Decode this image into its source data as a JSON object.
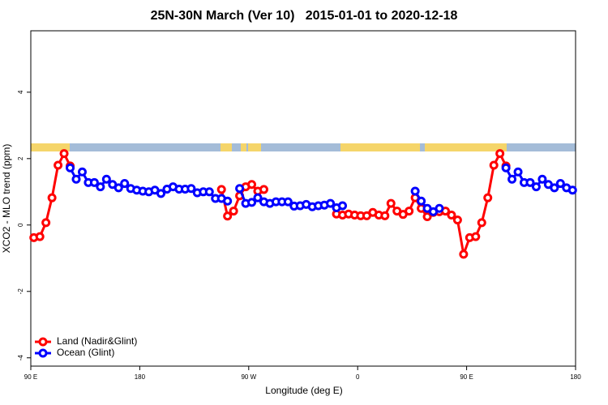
{
  "chart_data": {
    "type": "line",
    "title": "25N-30N March (Ver 10)   2015-01-01 to 2020-12-18",
    "x_label": "Longitude (deg E)",
    "y_label": "XCO2 - MLO trend (ppm)",
    "xlim": [
      90,
      540
    ],
    "ylim": [
      -4.25,
      5.85
    ],
    "xticks": [
      {
        "value": 90,
        "label": "90 E"
      },
      180,
      {
        "value": 270,
        "label": "90 W"
      },
      {
        "value": 360,
        "label": "0"
      },
      {
        "value": 450,
        "label": "90 E"
      },
      {
        "value": 540,
        "label": "180"
      }
    ],
    "yticks": [
      -4,
      -2,
      0,
      2,
      4
    ],
    "legend": "bottom-left",
    "x": [
      92.5,
      97.5,
      102.5,
      107.5,
      112.5,
      117.5,
      122.5,
      127.5,
      132.5,
      137.5,
      142.5,
      147.5,
      152.5,
      157.5,
      162.5,
      167.5,
      172.5,
      177.5,
      182.5,
      187.5,
      192.5,
      197.5,
      202.5,
      207.5,
      212.5,
      217.5,
      222.5,
      227.5,
      232.5,
      237.5,
      242.5,
      247.5,
      252.5,
      257.5,
      262.5,
      267.5,
      272.5,
      277.5,
      282.5,
      287.5,
      292.5,
      297.5,
      302.5,
      307.5,
      312.5,
      317.5,
      322.5,
      327.5,
      332.5,
      337.5,
      342.5,
      347.5,
      352.5,
      357.5,
      362.5,
      367.5,
      372.5,
      377.5,
      382.5,
      387.5,
      392.5,
      397.5,
      402.5,
      407.5,
      412.5,
      417.5,
      422.5,
      427.5,
      432.5,
      437.5,
      442.5,
      447.5,
      452.5,
      457.5,
      462.5,
      467.5,
      472.5,
      477.5,
      482.5,
      487.5,
      492.5,
      497.5,
      502.5,
      507.5,
      512.5,
      517.5,
      522.5,
      527.5,
      532.5,
      537.5
    ],
    "series": [
      {
        "name": "Land (Nadir&Glint)",
        "color": "#ff0000",
        "values": [
          -0.38,
          -0.35,
          0.07,
          0.82,
          1.8,
          2.15,
          1.78,
          null,
          null,
          null,
          null,
          null,
          null,
          null,
          null,
          null,
          null,
          null,
          null,
          null,
          null,
          null,
          null,
          null,
          null,
          null,
          null,
          null,
          null,
          null,
          null,
          1.07,
          0.27,
          0.42,
          0.88,
          1.15,
          1.22,
          1.02,
          1.07,
          null,
          null,
          null,
          null,
          null,
          null,
          null,
          null,
          null,
          null,
          null,
          0.33,
          0.3,
          0.33,
          0.3,
          0.28,
          0.28,
          0.38,
          0.3,
          0.28,
          0.65,
          0.42,
          0.32,
          0.42,
          0.82,
          0.5,
          0.25,
          0.38,
          0.4,
          0.42,
          0.3,
          0.15,
          -0.88,
          -0.38,
          -0.35,
          0.07,
          0.82,
          1.8,
          2.15,
          1.78,
          null,
          null,
          null,
          null,
          null,
          null,
          null,
          null,
          null,
          null,
          null
        ]
      },
      {
        "name": "Ocean (Glint)",
        "color": "#0000ff",
        "values": [
          null,
          null,
          null,
          null,
          null,
          null,
          1.72,
          1.38,
          1.6,
          1.28,
          1.28,
          1.15,
          1.38,
          1.22,
          1.12,
          1.25,
          1.1,
          1.05,
          1.02,
          1.0,
          1.05,
          0.95,
          1.08,
          1.15,
          1.08,
          1.08,
          1.1,
          0.97,
          1.0,
          1.0,
          0.8,
          0.8,
          0.72,
          null,
          1.1,
          0.65,
          0.68,
          0.82,
          0.7,
          0.65,
          0.7,
          0.7,
          0.7,
          0.57,
          0.58,
          0.62,
          0.55,
          0.58,
          0.6,
          0.65,
          0.52,
          0.58,
          null,
          null,
          null,
          null,
          null,
          null,
          null,
          null,
          null,
          null,
          null,
          1.02,
          0.72,
          0.5,
          0.4,
          0.5,
          null,
          null,
          null,
          null,
          null,
          null,
          null,
          null,
          null,
          null,
          1.72,
          1.38,
          1.6,
          1.28,
          1.28,
          1.15,
          1.38,
          1.22,
          1.12,
          1.25,
          1.12,
          1.05
        ]
      }
    ]
  }
}
